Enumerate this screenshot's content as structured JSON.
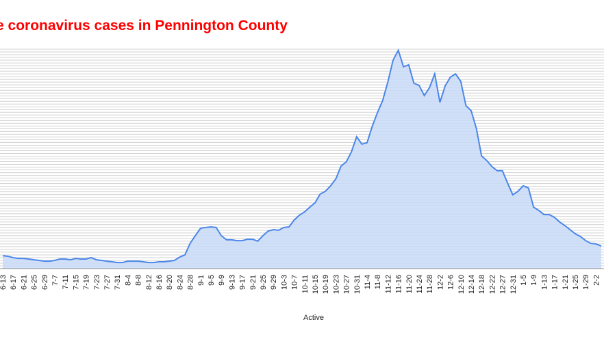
{
  "chart_data": {
    "type": "area",
    "title": "e coronavirus cases in Pennington County",
    "x_label": "Active",
    "categories": [
      "6-13",
      null,
      "6-17",
      null,
      "6-21",
      null,
      "6-25",
      null,
      "6-29",
      null,
      "7-7",
      null,
      "7-11",
      null,
      "7-15",
      null,
      "7-19",
      null,
      "7-23",
      null,
      "7-27",
      null,
      "7-31",
      null,
      "8-4",
      null,
      "8-8",
      null,
      "8-12",
      null,
      "8-16",
      null,
      "8-20",
      null,
      "8-24",
      null,
      "8-28",
      null,
      "9-1",
      null,
      "9-5",
      null,
      "9-9",
      null,
      "9-13",
      null,
      "9-17",
      null,
      "9-21",
      null,
      "9-25",
      null,
      "9-29",
      null,
      "10-3",
      null,
      "10-7",
      null,
      "10-11",
      null,
      "10-15",
      null,
      "10-19",
      null,
      "10-23",
      null,
      "10-27",
      null,
      "10-31",
      null,
      "11-4",
      null,
      "11-8",
      null,
      "11-12",
      null,
      "11-16",
      null,
      "11-20",
      null,
      "11-24",
      null,
      "11-28",
      null,
      "12-2",
      null,
      "12-6",
      null,
      "12-10",
      null,
      "12-14",
      null,
      "12-18",
      null,
      "12-22",
      null,
      "12-27",
      null,
      "12-31",
      null,
      "1-5",
      null,
      "1-9",
      null,
      "1-13",
      null,
      "1-17",
      null,
      "1-21",
      null,
      "1-25",
      null,
      "1-29",
      null,
      "2-2",
      null
    ],
    "values": [
      4.7,
      4.5,
      4,
      3.7,
      3.7,
      3.5,
      3.2,
      3,
      2.7,
      2.7,
      3,
      3.5,
      3.5,
      3.2,
      3.7,
      3.5,
      3.5,
      4,
      3.2,
      3,
      2.7,
      2.5,
      2.2,
      2.2,
      2.7,
      2.7,
      2.7,
      2.5,
      2.2,
      2.2,
      2.5,
      2.5,
      2.7,
      3,
      4.2,
      5,
      9.2,
      12,
      14.7,
      15,
      15.2,
      15,
      12,
      10.5,
      10.5,
      10.2,
      10.2,
      10.7,
      10.7,
      10,
      12,
      13.7,
      14.2,
      14,
      15,
      15.2,
      17.7,
      19.5,
      20.7,
      22.4,
      24,
      27.2,
      28.2,
      30.2,
      32.7,
      37.4,
      38.9,
      42.6,
      48.1,
      45.4,
      45.9,
      51.9,
      56.9,
      61.3,
      68.1,
      76,
      79.6,
      73.6,
      74.3,
      67.6,
      66.8,
      63.1,
      66,
      71,
      60.6,
      66.6,
      69.8,
      71,
      68.3,
      59.4,
      57.6,
      51.1,
      41.1,
      39.4,
      37.2,
      35.7,
      35.7,
      31.2,
      26.9,
      28.2,
      30.2,
      29.4,
      22.4,
      21.2,
      19.7,
      19.7,
      18.7,
      17,
      15.7,
      14.2,
      12.7,
      11.7,
      10.2,
      9.2,
      9,
      8.2
    ],
    "color": "#4a86e8",
    "fill": "#c9daf8",
    "ylim": [
      0,
      80
    ],
    "yticks": [
      0,
      1,
      2,
      3,
      4,
      5,
      6,
      7,
      8,
      9,
      10,
      11,
      12,
      13,
      14,
      15,
      16,
      17,
      18,
      19,
      20,
      21,
      22,
      23,
      24,
      25,
      26,
      27,
      28,
      29,
      30,
      31,
      32,
      33,
      34,
      35,
      36,
      37,
      38,
      39,
      40,
      41,
      42,
      43,
      44,
      45,
      46,
      47,
      48,
      49,
      50,
      51,
      52,
      53,
      54,
      55,
      56,
      57,
      58,
      59,
      60,
      61,
      62,
      63,
      64,
      65,
      66,
      67,
      68,
      69,
      70,
      71,
      72,
      73,
      74,
      75,
      76,
      77,
      78,
      79,
      80
    ],
    "grid": true
  }
}
